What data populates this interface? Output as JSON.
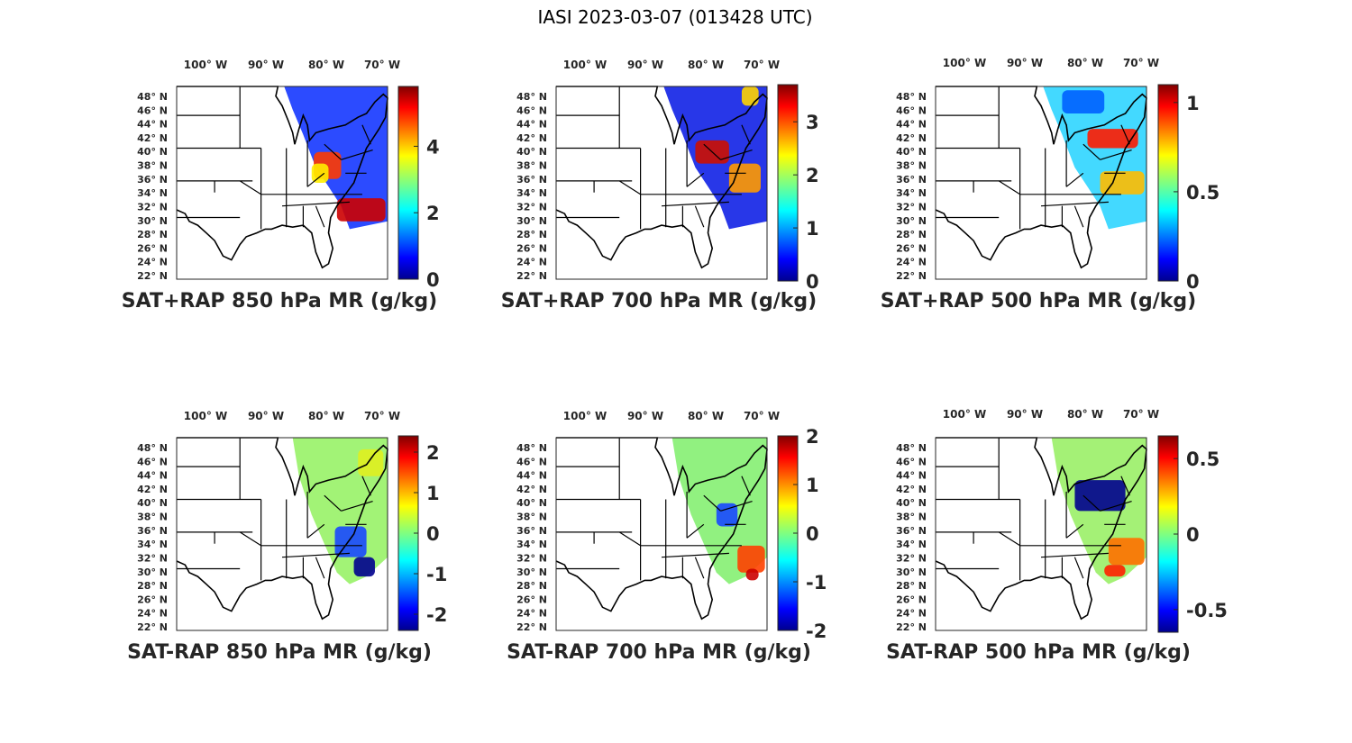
{
  "figure": {
    "title": "IASI 2023-03-07 (013428 UTC)"
  },
  "lon_labels": [
    "100",
    "90",
    "80",
    "70"
  ],
  "lon_suffix": "W",
  "lat_labels": [
    "48",
    "46",
    "44",
    "42",
    "40",
    "38",
    "36",
    "34",
    "32",
    "30",
    "28",
    "26",
    "24",
    "22"
  ],
  "lat_suffix": "N",
  "deg": "°",
  "panels": [
    {
      "title": "SAT+RAP 850 hPa MR (g/kg)",
      "colorbar": {
        "min": 0,
        "max": 5.8,
        "ticks": [
          "0",
          "2",
          "4"
        ],
        "tick_values": [
          0,
          2,
          4
        ]
      }
    },
    {
      "title": "SAT+RAP 700 hPa MR (g/kg)",
      "colorbar": {
        "min": 0,
        "max": 3.7,
        "ticks": [
          "0",
          "1",
          "2",
          "3"
        ],
        "tick_values": [
          0,
          1,
          2,
          3
        ]
      }
    },
    {
      "title": "SAT+RAP 500 hPa MR (g/kg)",
      "colorbar": {
        "min": 0,
        "max": 1.1,
        "ticks": [
          "0",
          "0.5",
          "1"
        ],
        "tick_values": [
          0,
          0.5,
          1
        ]
      }
    },
    {
      "title": "SAT-RAP 850 hPa MR (g/kg)",
      "colorbar": {
        "min": -2.4,
        "max": 2.4,
        "ticks": [
          "-2",
          "-1",
          "0",
          "1",
          "2"
        ],
        "tick_values": [
          -2,
          -1,
          0,
          1,
          2
        ]
      }
    },
    {
      "title": "SAT-RAP 700 hPa MR (g/kg)",
      "colorbar": {
        "min": -2,
        "max": 2,
        "ticks": [
          "-2",
          "-1",
          "0",
          "1",
          "2"
        ],
        "tick_values": [
          -2,
          -1,
          0,
          1,
          2
        ]
      }
    },
    {
      "title": "SAT-RAP 500 hPa MR (g/kg)",
      "colorbar": {
        "min": -0.65,
        "max": 0.65,
        "ticks": [
          "-0.5",
          "0",
          "0.5"
        ],
        "tick_values": [
          -0.5,
          0,
          0.5
        ]
      }
    }
  ]
}
